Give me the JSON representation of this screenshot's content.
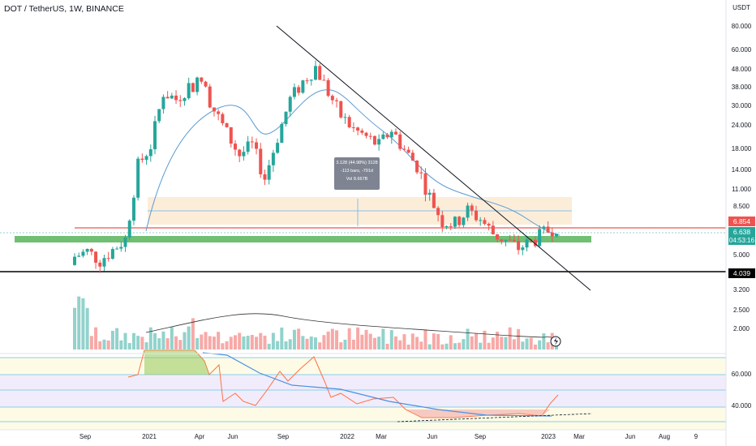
{
  "header": {
    "ticker_line": "DOT / TetherUS, 1W, BINANCE"
  },
  "price_scale": {
    "currency": "USDT",
    "labels": [
      "80.000",
      "60.000",
      "48.000",
      "38.000",
      "30.000",
      "24.000",
      "18.000",
      "14.000",
      "11.000",
      "8.500",
      "5.000",
      "3.200",
      "2.500",
      "2.000"
    ],
    "tag_red": "6.854",
    "tag_current": "6.638",
    "countdown": "04:53:16",
    "tag_black": "4.039"
  },
  "rsi_scale": {
    "labels": [
      "60.000",
      "40.000"
    ]
  },
  "time_axis": {
    "labels": [
      "Sep",
      "2021",
      "Apr",
      "Jun",
      "Sep",
      "2022",
      "Mar",
      "Jun",
      "Sep",
      "2023",
      "Mar",
      "Jun",
      "Aug",
      "9"
    ]
  },
  "measure_tooltip": {
    "line1": "3.128 (44.98%) 3128",
    "line2": "-113 bars, -791d",
    "line3": "Vol 8.667B"
  },
  "colors": {
    "up": "#26a69a",
    "down": "#ef5350",
    "ma": "#5b9bd5",
    "support_zone": "#4caf50",
    "resistance_zone": "#fbe9cf",
    "rsi_line": "#ff7043",
    "rsi_ma": "#4a90e2"
  },
  "chart_data": {
    "type": "candlestick",
    "title": "DOT / TetherUS, 1W, BINANCE",
    "y_scale": "log",
    "ylim": [
      1.5,
      95
    ],
    "x": [
      "Sep",
      "2021",
      "Apr",
      "Jun",
      "Sep",
      "2022",
      "Mar",
      "Jun",
      "Sep",
      "2023",
      "Mar",
      "Jun",
      "Aug",
      "9"
    ],
    "close_approx": [
      4.5,
      4.8,
      4.3,
      4.9,
      5.6,
      14,
      18,
      35,
      32,
      38,
      40,
      28,
      21,
      16,
      18,
      12,
      20,
      32,
      40,
      48,
      35,
      26,
      22,
      20,
      18,
      22,
      17,
      14,
      9.5,
      7,
      6.8,
      8,
      7.2,
      6,
      5.5,
      5.0,
      5.4,
      6.0,
      6.638
    ],
    "levels": {
      "red_line": 6.854,
      "support_zone": 6.0,
      "black_line": 4.039
    },
    "rsi_levels": [
      60,
      40
    ]
  }
}
